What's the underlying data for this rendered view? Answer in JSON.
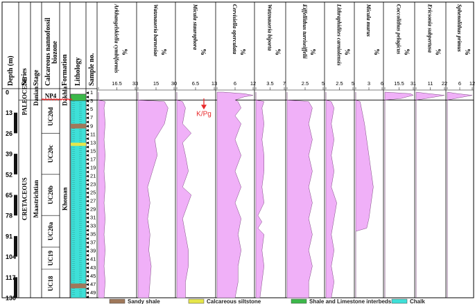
{
  "chart_data": {
    "type": "area",
    "depth_axis": {
      "label": "Depth (m)",
      "ticks": [
        0,
        13,
        26,
        39,
        52,
        65,
        78,
        91,
        104,
        117,
        130
      ],
      "ylim": [
        0,
        130
      ]
    },
    "columns": {
      "series": "Series",
      "stage": "Stage",
      "biozone": "Calcareous nannofossil biozone",
      "formation": "Formation",
      "lithology": "Lithology",
      "sample": "Sample no."
    },
    "series_units": [
      {
        "name": "PALEOCENE",
        "top": 0,
        "bottom": 5
      },
      {
        "name": "CRETACEOUS",
        "top": 5,
        "bottom": 130
      }
    ],
    "stages": [
      {
        "name": "Danian",
        "top": 0,
        "bottom": 5
      },
      {
        "name": "Maastrichtian",
        "top": 5,
        "bottom": 130
      }
    ],
    "biozones": [
      {
        "name": "NP4",
        "top": 0,
        "bottom": 5
      },
      {
        "name": "UC20d",
        "top": 5,
        "bottom": 26
      },
      {
        "name": "UC20c",
        "top": 26,
        "bottom": 52
      },
      {
        "name": "UC20b",
        "top": 52,
        "bottom": 78
      },
      {
        "name": "UC20a",
        "top": 78,
        "bottom": 98
      },
      {
        "name": "UC19",
        "top": 98,
        "bottom": 112
      },
      {
        "name": "UC18",
        "top": 112,
        "bottom": 130
      }
    ],
    "formations": [
      {
        "name": "Dakhla",
        "top": 0,
        "bottom": 5
      },
      {
        "name": "Khoman",
        "top": 5,
        "bottom": 130
      }
    ],
    "boundary_label": "K/Pg",
    "boundary_depth": 5,
    "sample_first": 1,
    "sample_last": 50,
    "taxa": [
      {
        "name": "Arkhangelskiella cymbiformis",
        "unit": "%",
        "ticks": [
          16.5,
          33
        ],
        "max": 33,
        "points": [
          [
            0,
            0
          ],
          [
            5,
            0
          ],
          [
            6,
            6
          ],
          [
            10,
            5
          ],
          [
            20,
            6
          ],
          [
            30,
            5
          ],
          [
            40,
            6
          ],
          [
            50,
            5
          ],
          [
            60,
            6
          ],
          [
            70,
            5
          ],
          [
            80,
            6
          ],
          [
            90,
            5
          ],
          [
            100,
            6
          ],
          [
            110,
            5
          ],
          [
            120,
            6
          ],
          [
            130,
            5
          ]
        ]
      },
      {
        "name": "Watznaueria barnesiae",
        "unit": "%",
        "ticks": [
          15,
          30
        ],
        "max": 30,
        "points": [
          [
            0,
            0
          ],
          [
            5,
            0
          ],
          [
            6,
            22
          ],
          [
            10,
            25
          ],
          [
            20,
            22
          ],
          [
            30,
            14
          ],
          [
            40,
            16
          ],
          [
            50,
            12
          ],
          [
            60,
            8
          ],
          [
            70,
            10
          ],
          [
            80,
            8
          ],
          [
            90,
            10
          ],
          [
            100,
            9
          ],
          [
            110,
            11
          ],
          [
            120,
            10
          ],
          [
            130,
            9
          ]
        ]
      },
      {
        "name": "Micula staurophora",
        "unit": "%",
        "ticks": [
          6.5,
          13
        ],
        "max": 13,
        "points": [
          [
            0,
            0
          ],
          [
            5,
            0
          ],
          [
            6,
            2
          ],
          [
            10,
            3
          ],
          [
            20,
            2
          ],
          [
            26,
            5
          ],
          [
            32,
            2
          ],
          [
            40,
            3
          ],
          [
            50,
            4
          ],
          [
            60,
            2
          ],
          [
            65,
            5
          ],
          [
            70,
            4
          ],
          [
            80,
            2
          ],
          [
            90,
            3
          ],
          [
            100,
            4
          ],
          [
            110,
            4
          ],
          [
            120,
            3
          ],
          [
            130,
            3
          ]
        ]
      },
      {
        "name": "Cervisiella operculata",
        "unit": "%",
        "ticks": [
          6,
          12
        ],
        "max": 12,
        "points": [
          [
            0,
            2
          ],
          [
            1,
            9
          ],
          [
            2,
            12
          ],
          [
            3,
            9
          ],
          [
            5,
            6
          ],
          [
            6,
            7
          ],
          [
            10,
            8
          ],
          [
            15,
            6
          ],
          [
            20,
            8
          ],
          [
            30,
            6
          ],
          [
            40,
            8
          ],
          [
            50,
            6
          ],
          [
            60,
            8
          ],
          [
            70,
            6
          ],
          [
            80,
            8
          ],
          [
            90,
            7
          ],
          [
            100,
            8
          ],
          [
            110,
            7
          ],
          [
            120,
            7
          ],
          [
            130,
            6
          ]
        ]
      },
      {
        "name": "Watznaueria biporta",
        "unit": "%",
        "ticks": [
          3.5,
          7
        ],
        "max": 7,
        "points": [
          [
            0,
            0
          ],
          [
            5,
            0
          ],
          [
            6,
            2
          ],
          [
            10,
            1.5
          ],
          [
            20,
            2
          ],
          [
            30,
            1.5
          ],
          [
            40,
            2
          ],
          [
            50,
            2
          ],
          [
            60,
            1.5
          ],
          [
            70,
            2
          ],
          [
            78,
            0.5
          ],
          [
            82,
            1.5
          ],
          [
            86,
            0.5
          ],
          [
            90,
            2
          ],
          [
            100,
            1.5
          ],
          [
            110,
            2
          ],
          [
            120,
            1.5
          ],
          [
            130,
            1
          ]
        ]
      },
      {
        "name": "Eiffellithus turriseiffelii",
        "unit": "%",
        "ticks": [
          2.5,
          5
        ],
        "max": 5,
        "points": [
          [
            0,
            0
          ],
          [
            5,
            0
          ],
          [
            6,
            3
          ],
          [
            10,
            3.5
          ],
          [
            20,
            3
          ],
          [
            30,
            3.5
          ],
          [
            40,
            3
          ],
          [
            50,
            3.5
          ],
          [
            60,
            3
          ],
          [
            70,
            3.5
          ],
          [
            80,
            3
          ],
          [
            90,
            3.5
          ],
          [
            100,
            3
          ],
          [
            110,
            3.5
          ],
          [
            120,
            3
          ],
          [
            130,
            3
          ]
        ]
      },
      {
        "name": "Lithraphidites carniolensis",
        "unit": "%",
        "ticks": [
          2.5,
          5
        ],
        "max": 5,
        "points": [
          [
            0,
            0
          ],
          [
            5,
            0
          ],
          [
            6,
            1
          ],
          [
            10,
            1.5
          ],
          [
            20,
            1
          ],
          [
            30,
            1.5
          ],
          [
            40,
            1
          ],
          [
            50,
            1.5
          ],
          [
            60,
            1
          ],
          [
            70,
            2
          ],
          [
            80,
            1.5
          ],
          [
            90,
            1
          ],
          [
            100,
            1.5
          ],
          [
            110,
            1
          ],
          [
            120,
            1.5
          ],
          [
            130,
            1
          ]
        ]
      },
      {
        "name": "Micula murus",
        "unit": "%",
        "ticks": [
          3,
          6
        ],
        "max": 6,
        "points": [
          [
            0,
            0
          ],
          [
            5,
            0
          ],
          [
            6,
            1
          ],
          [
            20,
            2
          ],
          [
            40,
            3
          ],
          [
            60,
            4
          ],
          [
            70,
            3.5
          ],
          [
            80,
            3
          ],
          [
            86,
            2.5
          ],
          [
            88,
            0
          ],
          [
            130,
            0
          ]
        ]
      },
      {
        "name": "Coccolithus pelagicus",
        "unit": "%",
        "ticks": [
          15.5,
          31
        ],
        "max": 31,
        "points": [
          [
            0,
            0
          ],
          [
            1,
            28
          ],
          [
            2,
            31
          ],
          [
            3,
            24
          ],
          [
            4,
            18
          ],
          [
            5,
            0
          ],
          [
            130,
            0
          ]
        ]
      },
      {
        "name": "Ericsonia subpertusa",
        "unit": "%",
        "ticks": [
          11,
          22
        ],
        "max": 22,
        "points": [
          [
            0,
            0
          ],
          [
            1,
            10
          ],
          [
            2,
            22
          ],
          [
            3,
            15
          ],
          [
            4,
            8
          ],
          [
            5,
            0
          ],
          [
            130,
            0
          ]
        ]
      },
      {
        "name": "Sphenolithus primus",
        "unit": "%",
        "ticks": [
          6,
          12
        ],
        "max": 12,
        "points": [
          [
            0,
            0
          ],
          [
            1,
            5
          ],
          [
            2,
            12
          ],
          [
            3,
            8
          ],
          [
            4,
            4
          ],
          [
            5,
            0
          ],
          [
            130,
            0
          ]
        ]
      }
    ],
    "legend": [
      {
        "label": "Sandy shale",
        "color": "#a0785a"
      },
      {
        "label": "Calcareous siltstone",
        "color": "#e6e64a"
      },
      {
        "label": "Shale and Limestone interbeds",
        "color": "#3cb84a"
      },
      {
        "label": "Chalk",
        "color": "#3ee0d8"
      }
    ],
    "colors": {
      "fill": "#f0b0f8",
      "stroke": "#7a4a7e",
      "boundary": "#e8282a",
      "chalk": "#3ee0d8"
    }
  }
}
